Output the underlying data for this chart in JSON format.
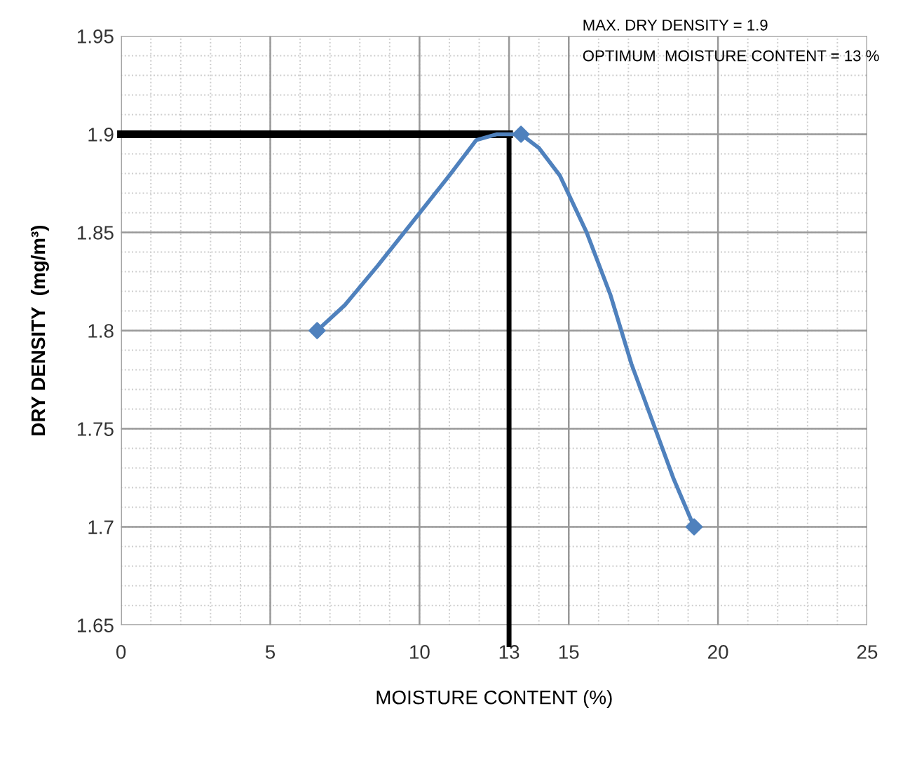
{
  "chart_data": {
    "type": "line",
    "xlabel": "MOISTURE CONTENT (%)",
    "ylabel": "DRY DENSITY  (mg/m³)",
    "annotations": [
      "MAX. DRY DENSITY = 1.9",
      "OPTIMUM  MOISTURE CONTENT = 13 %"
    ],
    "series": [
      {
        "color": "#4f81bd",
        "x": [
          6.57,
          7.5,
          8.6,
          9.8,
          11.0,
          11.9,
          12.6,
          13.4,
          14.0,
          14.7,
          15.6,
          16.4,
          17.1,
          17.8,
          18.5,
          19.2
        ],
        "values": [
          1.8,
          1.813,
          1.833,
          1.856,
          1.879,
          1.897,
          1.9,
          1.9,
          1.893,
          1.879,
          1.85,
          1.818,
          1.783,
          1.754,
          1.725,
          1.7
        ]
      },
      {
        "type": "scatter",
        "color": "#4f81bd",
        "marker": "diamond",
        "x": [
          6.57,
          13.4,
          19.2
        ],
        "values": [
          1.8,
          1.9,
          1.7
        ]
      }
    ],
    "ref_lines": [
      {
        "axis": "y",
        "value": 1.9,
        "color": "#000000"
      },
      {
        "axis": "x",
        "value": 13,
        "color": "#000000"
      }
    ],
    "xlim": [
      0,
      25
    ],
    "xticks": [
      0,
      5,
      10,
      13,
      15,
      20,
      25
    ],
    "ylim": [
      1.65,
      1.95
    ],
    "yticks": [
      1.65,
      1.7,
      1.75,
      1.8,
      1.85,
      1.9,
      1.95
    ],
    "grid": true
  }
}
